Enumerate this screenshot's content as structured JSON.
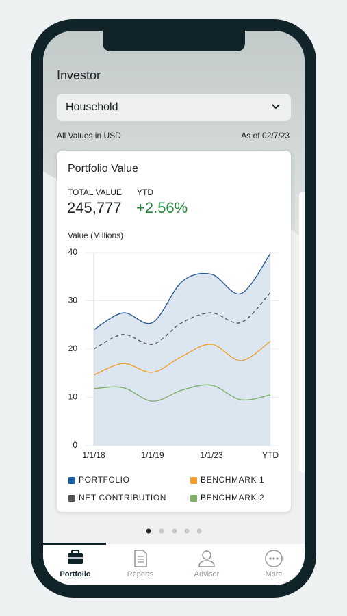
{
  "header": {
    "title": "Investor",
    "selector": "Household",
    "currency_note": "All Values in USD",
    "as_of": "As of 02/7/23"
  },
  "card": {
    "title": "Portfolio Value",
    "total_label": "TOTAL VALUE",
    "total_value": "245,777",
    "ytd_label": "YTD",
    "ytd_value": "+2.56%"
  },
  "chart_data": {
    "type": "line",
    "y_label": "Value (Millions)",
    "categories": [
      "1/1/18",
      null,
      "1/1/19",
      null,
      "1/1/23",
      null,
      "YTD"
    ],
    "series": [
      {
        "name": "PORTFOLIO",
        "color": "#2e5b91",
        "legend_color": "#1f5fa8",
        "area_color": "#dce6f0",
        "values": [
          24,
          27.5,
          25.5,
          34,
          35.5,
          31.5,
          39.8
        ]
      },
      {
        "name": "BENCHMARK 1",
        "color": "#f0a030",
        "values": [
          14.6,
          17,
          15.2,
          18.5,
          21,
          17.6,
          21.6
        ]
      },
      {
        "name": "NET CONTRIBUTION",
        "color": "#555555",
        "dashed": true,
        "values": [
          20,
          23,
          21,
          25.5,
          27.5,
          25.5,
          31.7
        ]
      },
      {
        "name": "BENCHMARK 2",
        "color": "#7fb069",
        "values": [
          11.8,
          12,
          9.2,
          11.5,
          12.5,
          9.5,
          10.5
        ]
      }
    ],
    "ylim": [
      0,
      40
    ],
    "yticks": [
      0,
      10,
      20,
      30,
      40
    ],
    "grid": true
  },
  "nav": [
    {
      "label": "Portfolio",
      "active": true
    },
    {
      "label": "Reports",
      "active": false
    },
    {
      "label": "Advisor",
      "active": false
    },
    {
      "label": "More",
      "active": false
    }
  ]
}
